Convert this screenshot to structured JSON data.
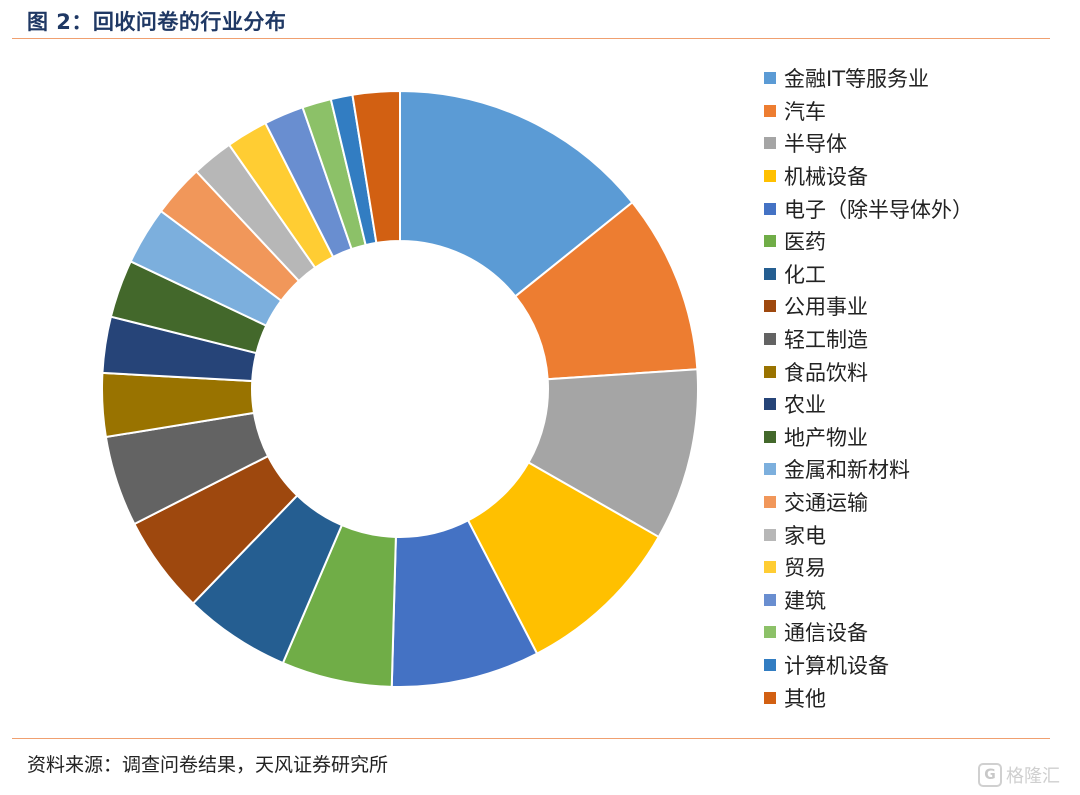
{
  "header": {
    "title": "图 2：回收问卷的行业分布"
  },
  "footer": {
    "source": "资料来源：调查问卷结果，天风证券研究所"
  },
  "watermark": {
    "icon_glyph": "G",
    "text": "格隆汇"
  },
  "chart_data": {
    "type": "pie",
    "variant": "donut",
    "legend_position": "right",
    "categories": [
      "金融IT等服务业",
      "汽车",
      "半导体",
      "机械设备",
      "电子（除半导体外）",
      "医药",
      "化工",
      "公用事业",
      "轻工制造",
      "食品饮料",
      "农业",
      "地产物业",
      "金属和新材料",
      "交通运输",
      "家电",
      "贸易",
      "建筑",
      "通信设备",
      "计算机设备",
      "其他"
    ],
    "values": [
      14.5,
      9.9,
      9.5,
      9.3,
      8.2,
      6.1,
      5.9,
      5.4,
      5.0,
      3.5,
      3.1,
      3.2,
      3.2,
      2.9,
      2.3,
      2.3,
      2.2,
      1.6,
      1.2,
      2.6
    ],
    "colors": [
      "#5b9bd5",
      "#ed7d31",
      "#a5a5a5",
      "#ffc000",
      "#4472c4",
      "#70ad47",
      "#255e91",
      "#9e480e",
      "#636363",
      "#997300",
      "#264478",
      "#43682b",
      "#7cafdd",
      "#f1975a",
      "#b7b7b7",
      "#ffcd33",
      "#698ed0",
      "#8cc168",
      "#327dc2",
      "#d26012"
    ]
  }
}
